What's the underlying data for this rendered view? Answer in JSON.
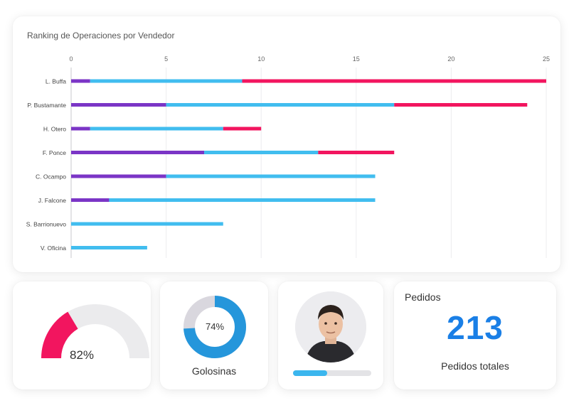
{
  "chart_data": {
    "type": "bar",
    "orientation": "horizontal",
    "stacked": true,
    "title": "Ranking de Operaciones por Vendedor",
    "categories": [
      "L. Buffa",
      "P. Bustamante",
      "H. Otero",
      "F. Ponce",
      "C. Ocampo",
      "J. Falcone",
      "S. Barrionuevo",
      "V. Oficina"
    ],
    "series": [
      {
        "color": "#7b35c6",
        "values": [
          1,
          5,
          1,
          7,
          5,
          2,
          0,
          0
        ]
      },
      {
        "color": "#41bdef",
        "values": [
          8,
          12,
          7,
          6,
          11,
          14,
          8,
          4
        ]
      },
      {
        "color": "#f2155f",
        "values": [
          16,
          7,
          2,
          4,
          0,
          0,
          0,
          0
        ]
      }
    ],
    "xticks": [
      0,
      5,
      10,
      15,
      20,
      25
    ],
    "xlim": [
      0,
      25
    ],
    "grid": true,
    "axis_position": "top"
  },
  "gauge": {
    "value_label": "82%",
    "value": 0.82,
    "fill_color": "#f2155f",
    "track_color": "#ebebed"
  },
  "donut": {
    "value_label": "74%",
    "value": 0.74,
    "label": "Golosinas",
    "fill_color": "#2596db",
    "track_color": "#d9d7de"
  },
  "profile": {
    "progress": 0.44,
    "progress_color": "#3bb6ee"
  },
  "orders": {
    "title": "Pedidos",
    "total": "213",
    "label": "Pedidos totales",
    "accent_color": "#1a7fe6"
  }
}
